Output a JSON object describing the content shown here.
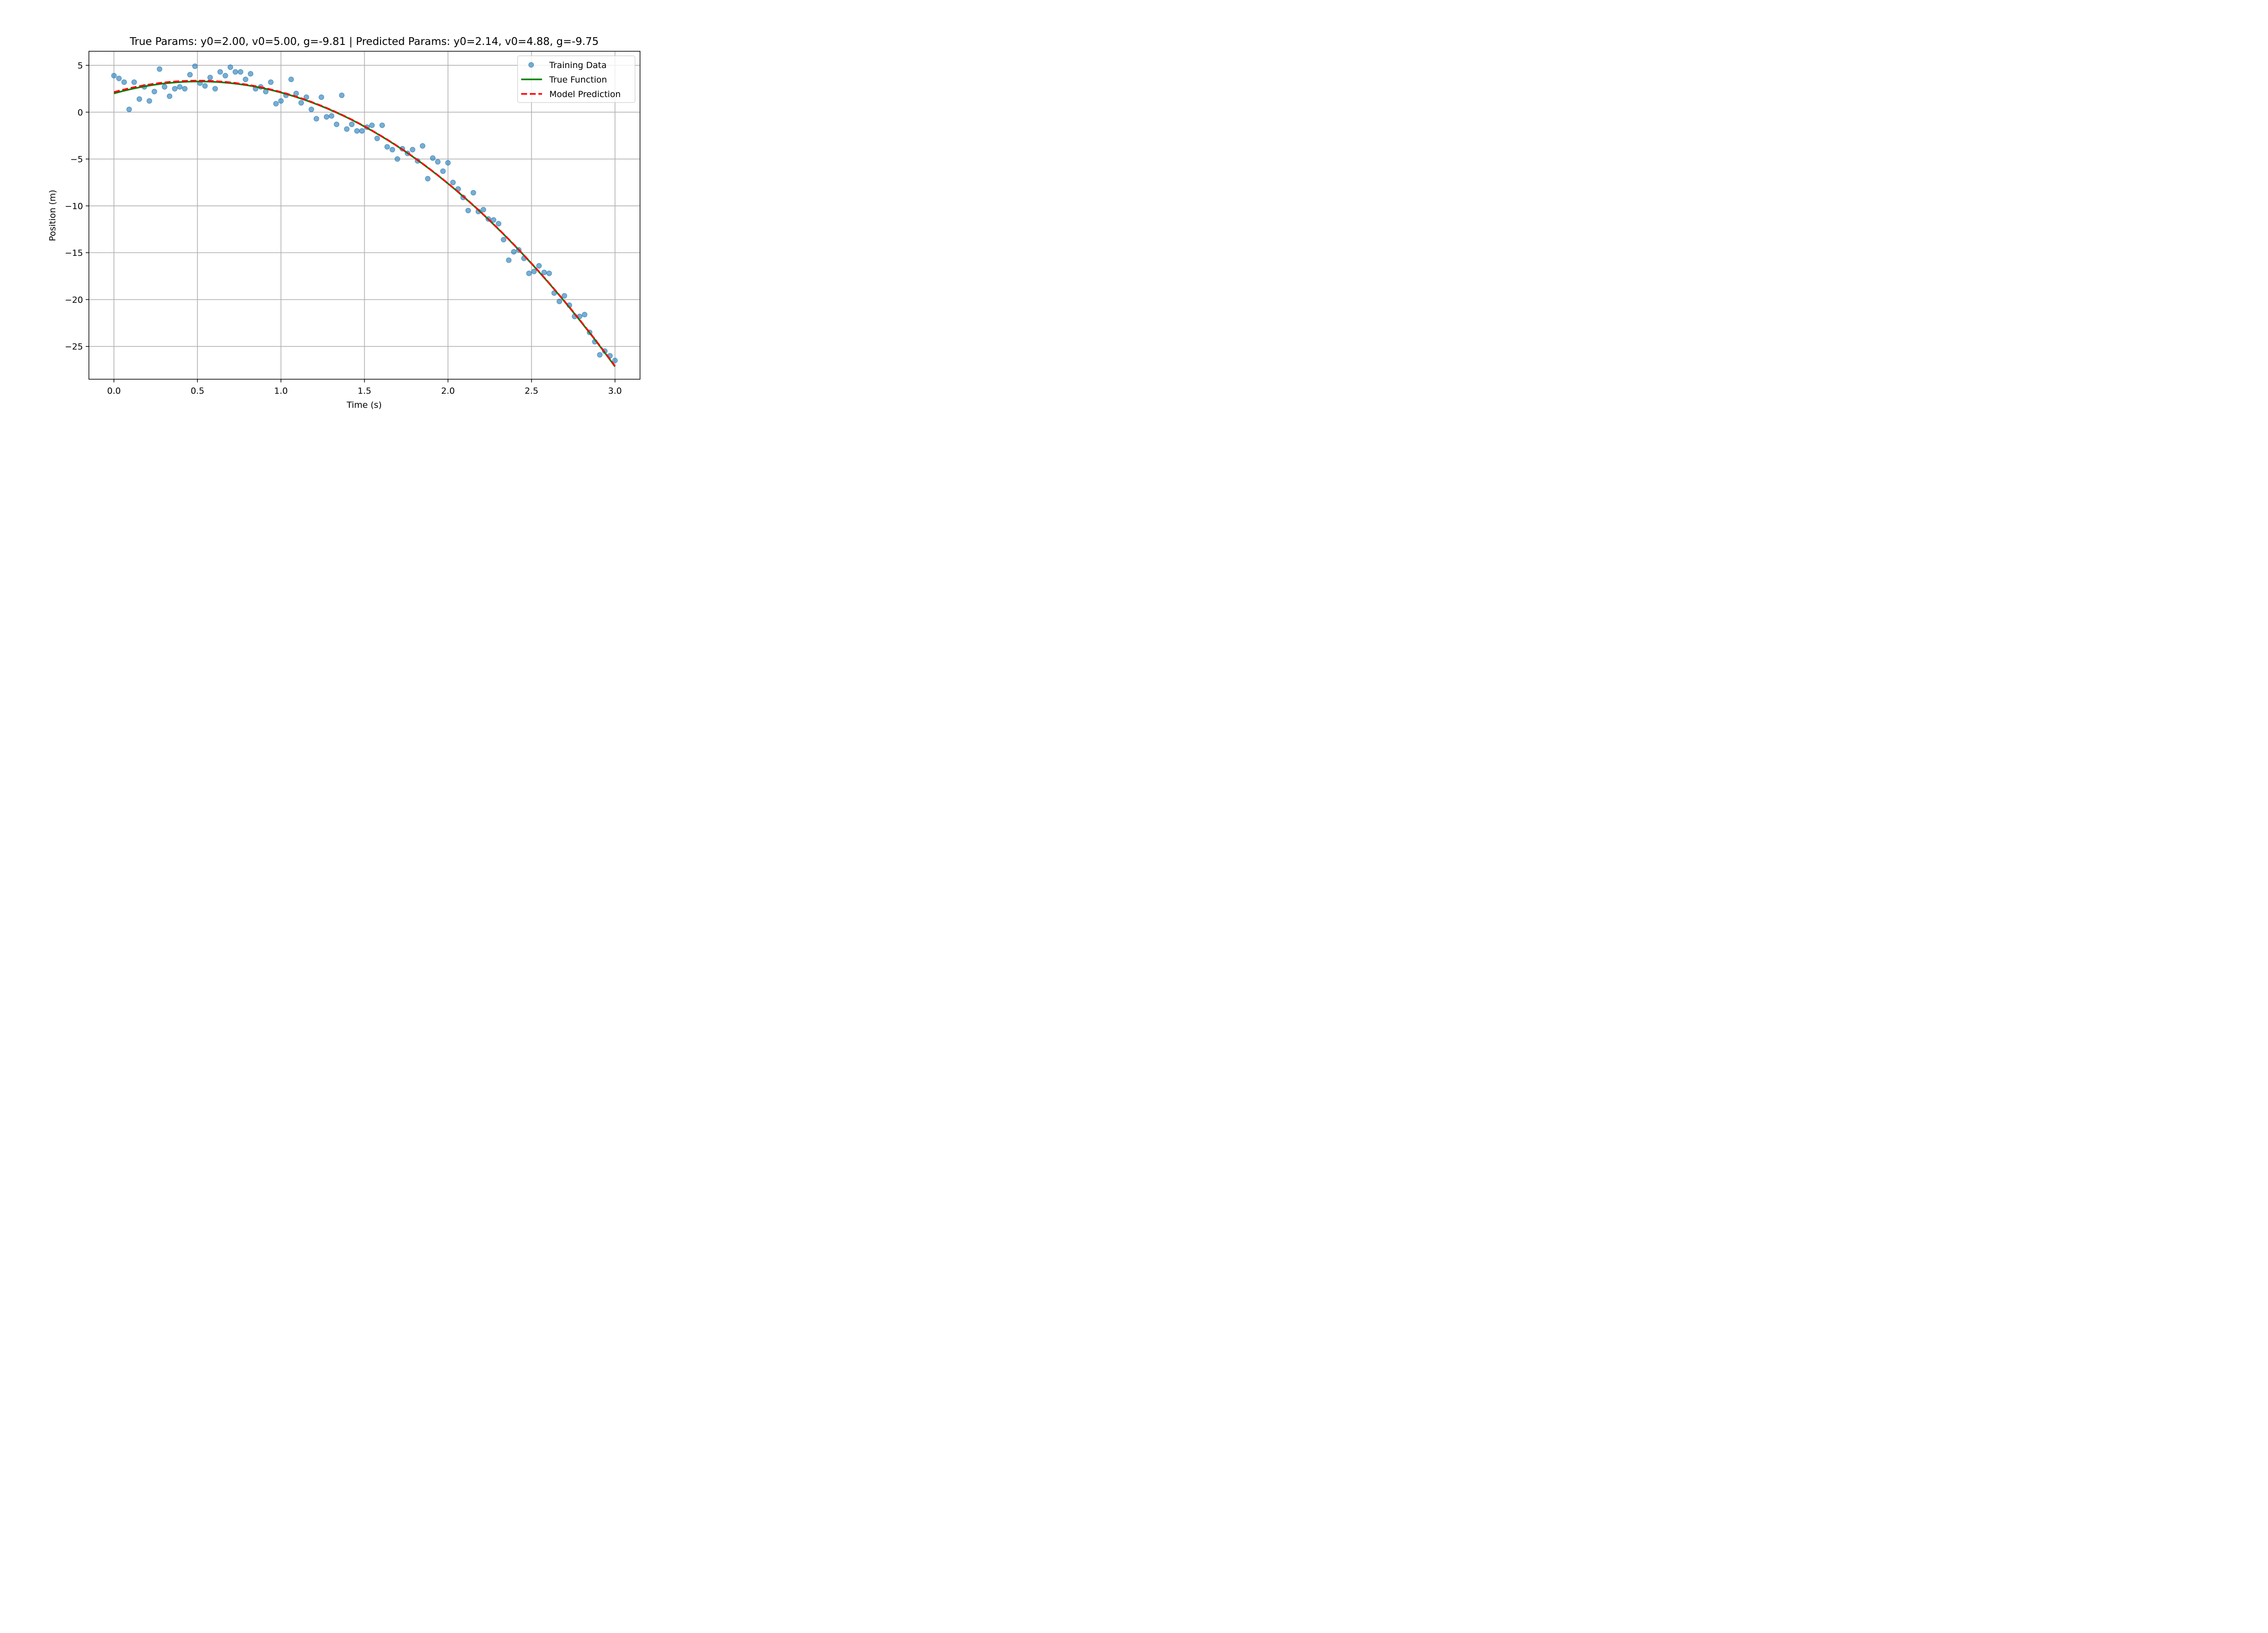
{
  "chart_data": {
    "type": "scatter",
    "title": "True Params: y0=2.00, v0=5.00, g=-9.81 | Predicted Params: y0=2.14, v0=4.88, g=-9.75",
    "xlabel": "Time (s)",
    "ylabel": "Position (m)",
    "xlim": [
      -0.15,
      3.15
    ],
    "ylim": [
      -28.5,
      6.5
    ],
    "x_ticks": [
      0.0,
      0.5,
      1.0,
      1.5,
      2.0,
      2.5,
      3.0
    ],
    "x_tick_labels": [
      "0.0",
      "0.5",
      "1.0",
      "1.5",
      "2.0",
      "2.5",
      "3.0"
    ],
    "y_ticks": [
      5,
      0,
      -5,
      -10,
      -15,
      -20,
      -25
    ],
    "y_tick_labels": [
      "5",
      "0",
      "−5",
      "−10",
      "−15",
      "−20",
      "−25"
    ],
    "grid": true,
    "legend_position": "top-right",
    "series": [
      {
        "name": "Training Data",
        "kind": "scatter",
        "color": "#1f77b4",
        "points": [
          [
            0.0,
            3.9
          ],
          [
            0.03,
            3.6
          ],
          [
            0.061,
            3.2
          ],
          [
            0.091,
            0.3
          ],
          [
            0.121,
            3.2
          ],
          [
            0.152,
            1.4
          ],
          [
            0.182,
            2.7
          ],
          [
            0.212,
            1.2
          ],
          [
            0.242,
            2.2
          ],
          [
            0.273,
            4.6
          ],
          [
            0.303,
            2.7
          ],
          [
            0.333,
            1.7
          ],
          [
            0.364,
            2.5
          ],
          [
            0.394,
            2.7
          ],
          [
            0.424,
            2.5
          ],
          [
            0.455,
            4.0
          ],
          [
            0.485,
            4.9
          ],
          [
            0.515,
            3.1
          ],
          [
            0.545,
            2.8
          ],
          [
            0.576,
            3.7
          ],
          [
            0.606,
            2.5
          ],
          [
            0.636,
            4.3
          ],
          [
            0.667,
            3.9
          ],
          [
            0.697,
            4.8
          ],
          [
            0.727,
            4.3
          ],
          [
            0.758,
            4.3
          ],
          [
            0.788,
            3.5
          ],
          [
            0.818,
            4.1
          ],
          [
            0.848,
            2.5
          ],
          [
            0.879,
            2.7
          ],
          [
            0.909,
            2.2
          ],
          [
            0.939,
            3.2
          ],
          [
            0.97,
            0.9
          ],
          [
            1.0,
            1.2
          ],
          [
            1.03,
            1.8
          ],
          [
            1.061,
            3.5
          ],
          [
            1.091,
            2.0
          ],
          [
            1.121,
            1.0
          ],
          [
            1.152,
            1.6
          ],
          [
            1.182,
            0.3
          ],
          [
            1.212,
            -0.7
          ],
          [
            1.242,
            1.6
          ],
          [
            1.273,
            -0.5
          ],
          [
            1.303,
            -0.4
          ],
          [
            1.333,
            -1.3
          ],
          [
            1.364,
            1.8
          ],
          [
            1.394,
            -1.8
          ],
          [
            1.424,
            -1.3
          ],
          [
            1.455,
            -2.0
          ],
          [
            1.485,
            -2.0
          ],
          [
            1.515,
            -1.6
          ],
          [
            1.545,
            -1.4
          ],
          [
            1.576,
            -2.8
          ],
          [
            1.606,
            -1.4
          ],
          [
            1.636,
            -3.7
          ],
          [
            1.667,
            -4.0
          ],
          [
            1.697,
            -5.0
          ],
          [
            1.727,
            -3.9
          ],
          [
            1.758,
            -4.4
          ],
          [
            1.788,
            -4.0
          ],
          [
            1.818,
            -5.2
          ],
          [
            1.848,
            -3.6
          ],
          [
            1.879,
            -7.1
          ],
          [
            1.909,
            -4.9
          ],
          [
            1.939,
            -5.3
          ],
          [
            1.97,
            -6.3
          ],
          [
            2.0,
            -5.4
          ],
          [
            2.03,
            -7.5
          ],
          [
            2.061,
            -8.2
          ],
          [
            2.091,
            -9.1
          ],
          [
            2.121,
            -10.5
          ],
          [
            2.152,
            -8.6
          ],
          [
            2.182,
            -10.6
          ],
          [
            2.212,
            -10.4
          ],
          [
            2.242,
            -11.4
          ],
          [
            2.273,
            -11.5
          ],
          [
            2.303,
            -11.9
          ],
          [
            2.333,
            -13.6
          ],
          [
            2.364,
            -15.8
          ],
          [
            2.394,
            -14.9
          ],
          [
            2.424,
            -14.7
          ],
          [
            2.455,
            -15.6
          ],
          [
            2.485,
            -17.2
          ],
          [
            2.515,
            -17.0
          ],
          [
            2.545,
            -16.4
          ],
          [
            2.576,
            -17.1
          ],
          [
            2.606,
            -17.2
          ],
          [
            2.636,
            -19.3
          ],
          [
            2.667,
            -20.2
          ],
          [
            2.697,
            -19.6
          ],
          [
            2.727,
            -20.6
          ],
          [
            2.758,
            -21.8
          ],
          [
            2.788,
            -21.8
          ],
          [
            2.818,
            -21.6
          ],
          [
            2.848,
            -23.5
          ],
          [
            2.879,
            -24.5
          ],
          [
            2.909,
            -25.9
          ],
          [
            2.939,
            -25.5
          ],
          [
            2.97,
            -26.0
          ],
          [
            3.0,
            -26.5
          ]
        ]
      },
      {
        "name": "True Function",
        "kind": "line",
        "color": "#008000",
        "style": "solid",
        "params": {
          "y0": 2.0,
          "v0": 5.0,
          "g": -9.81
        }
      },
      {
        "name": "Model Prediction",
        "kind": "line",
        "color": "#ff0000",
        "style": "dashed",
        "params": {
          "y0": 2.14,
          "v0": 4.88,
          "g": -9.75
        }
      }
    ]
  }
}
